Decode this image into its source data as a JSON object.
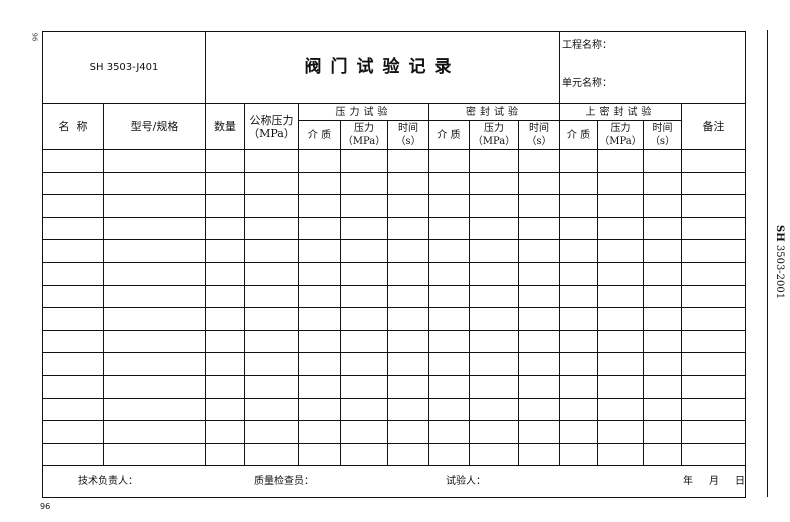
{
  "header": {
    "code": "SH 3503-J401",
    "title": "阀门试验记录",
    "project_label": "工程名称：",
    "unit_label": "单元名称："
  },
  "columns": {
    "name": "名  称",
    "model": "型号/规格",
    "quantity": "数量",
    "nominal_pressure": "公称压力",
    "nominal_pressure_unit": "（MPa）",
    "pressure_test": "压力试验",
    "seal_test": "密封试验",
    "upper_seal_test": "上密封试验",
    "remarks": "备注",
    "medium": "介 质",
    "pressure": "压力",
    "pressure_unit": "（MPa）",
    "time": "时间",
    "time_unit": "（s）"
  },
  "footer": {
    "tech_lead": "技术负责人：",
    "qc_inspector": "质量检查员：",
    "tester": "试验人：",
    "year": "年",
    "month": "月",
    "day": "日"
  },
  "side_label": {
    "bold": "SH",
    "rest": " 3503-2001"
  },
  "page_number": "96",
  "page_number_rotated": "96"
}
